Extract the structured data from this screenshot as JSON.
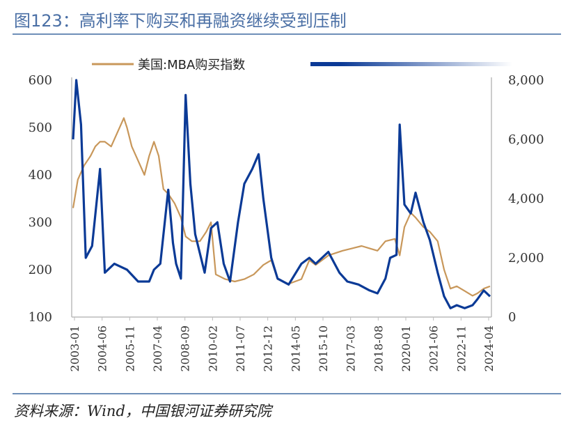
{
  "header": {
    "title": "图123：高利率下购买和再融资继续受到压制"
  },
  "footer": {
    "source": "资料来源：Wind，中国银河证券研究院"
  },
  "colors": {
    "title": "#4a6fa5",
    "rule": "#6e8fb8",
    "series_purchase": "#c8975a",
    "series_refi": "#0b3a96"
  },
  "chart_data": {
    "type": "line",
    "x_tick_labels": [
      "2003-01",
      "2004-06",
      "2005-11",
      "2007-04",
      "2008-09",
      "2010-02",
      "2011-07",
      "2012-12",
      "2014-05",
      "2015-10",
      "2017-03",
      "2018-08",
      "2020-01",
      "2021-06",
      "2022-11",
      "2024-04"
    ],
    "x_range": [
      "2003-01",
      "2024-12"
    ],
    "y_left": {
      "ylim": [
        100,
        600
      ],
      "ticks": [
        "600",
        "500",
        "400",
        "300",
        "200",
        "100"
      ]
    },
    "y_right": {
      "ylim": [
        0,
        8000
      ],
      "ticks": [
        "8,000",
        "6,000",
        "4,000",
        "2,000",
        "0"
      ]
    },
    "legend": {
      "entries": [
        "美国:MBA购买指数",
        ""
      ],
      "position": "top"
    },
    "series": [
      {
        "name": "美国:MBA购买指数",
        "axis": "left",
        "points": [
          [
            "2003-01",
            330
          ],
          [
            "2003-04",
            390
          ],
          [
            "2003-08",
            420
          ],
          [
            "2003-12",
            440
          ],
          [
            "2004-03",
            460
          ],
          [
            "2004-06",
            470
          ],
          [
            "2004-09",
            470
          ],
          [
            "2005-01",
            460
          ],
          [
            "2005-05",
            490
          ],
          [
            "2005-09",
            520
          ],
          [
            "2005-11",
            500
          ],
          [
            "2006-02",
            460
          ],
          [
            "2006-06",
            430
          ],
          [
            "2006-10",
            400
          ],
          [
            "2007-01",
            440
          ],
          [
            "2007-04",
            470
          ],
          [
            "2007-07",
            440
          ],
          [
            "2007-10",
            370
          ],
          [
            "2008-01",
            360
          ],
          [
            "2008-05",
            340
          ],
          [
            "2008-09",
            310
          ],
          [
            "2008-12",
            270
          ],
          [
            "2009-04",
            260
          ],
          [
            "2009-09",
            260
          ],
          [
            "2010-01",
            280
          ],
          [
            "2010-04",
            300
          ],
          [
            "2010-07",
            190
          ],
          [
            "2011-01",
            180
          ],
          [
            "2011-07",
            175
          ],
          [
            "2012-01",
            180
          ],
          [
            "2012-07",
            190
          ],
          [
            "2013-01",
            210
          ],
          [
            "2013-06",
            220
          ],
          [
            "2013-10",
            180
          ],
          [
            "2014-05",
            170
          ],
          [
            "2015-01",
            180
          ],
          [
            "2015-06",
            220
          ],
          [
            "2015-10",
            210
          ],
          [
            "2016-06",
            230
          ],
          [
            "2017-03",
            240
          ],
          [
            "2017-09",
            245
          ],
          [
            "2018-03",
            250
          ],
          [
            "2018-08",
            245
          ],
          [
            "2019-01",
            240
          ],
          [
            "2019-06",
            260
          ],
          [
            "2019-12",
            265
          ],
          [
            "2020-03",
            230
          ],
          [
            "2020-06",
            290
          ],
          [
            "2020-10",
            320
          ],
          [
            "2021-01",
            310
          ],
          [
            "2021-06",
            290
          ],
          [
            "2021-10",
            280
          ],
          [
            "2022-03",
            260
          ],
          [
            "2022-07",
            200
          ],
          [
            "2022-11",
            160
          ],
          [
            "2023-03",
            165
          ],
          [
            "2023-08",
            155
          ],
          [
            "2024-01",
            145
          ],
          [
            "2024-04",
            150
          ],
          [
            "2024-08",
            160
          ],
          [
            "2024-12",
            165
          ]
        ]
      },
      {
        "name": "",
        "axis": "right",
        "points": [
          [
            "2003-01",
            6000
          ],
          [
            "2003-03",
            8000
          ],
          [
            "2003-06",
            6500
          ],
          [
            "2003-09",
            2000
          ],
          [
            "2004-01",
            2400
          ],
          [
            "2004-06",
            5000
          ],
          [
            "2004-09",
            1500
          ],
          [
            "2005-03",
            1800
          ],
          [
            "2005-11",
            1600
          ],
          [
            "2006-06",
            1200
          ],
          [
            "2007-01",
            1200
          ],
          [
            "2007-04",
            1600
          ],
          [
            "2007-08",
            1800
          ],
          [
            "2008-01",
            4300
          ],
          [
            "2008-04",
            2500
          ],
          [
            "2008-06",
            1800
          ],
          [
            "2008-09",
            1300
          ],
          [
            "2008-12",
            7500
          ],
          [
            "2009-03",
            4500
          ],
          [
            "2009-06",
            2800
          ],
          [
            "2009-12",
            1500
          ],
          [
            "2010-04",
            3000
          ],
          [
            "2010-08",
            3200
          ],
          [
            "2010-12",
            1800
          ],
          [
            "2011-04",
            1200
          ],
          [
            "2011-09",
            3200
          ],
          [
            "2012-01",
            4500
          ],
          [
            "2012-06",
            5000
          ],
          [
            "2012-10",
            5500
          ],
          [
            "2013-01",
            4000
          ],
          [
            "2013-06",
            2000
          ],
          [
            "2013-10",
            1300
          ],
          [
            "2014-05",
            1100
          ],
          [
            "2015-01",
            1800
          ],
          [
            "2015-06",
            2000
          ],
          [
            "2015-10",
            1800
          ],
          [
            "2016-06",
            2200
          ],
          [
            "2017-01",
            1500
          ],
          [
            "2017-06",
            1200
          ],
          [
            "2018-01",
            1100
          ],
          [
            "2018-08",
            900
          ],
          [
            "2019-01",
            800
          ],
          [
            "2019-06",
            1300
          ],
          [
            "2019-09",
            2000
          ],
          [
            "2020-01",
            2100
          ],
          [
            "2020-03",
            6500
          ],
          [
            "2020-06",
            3800
          ],
          [
            "2020-10",
            3500
          ],
          [
            "2021-01",
            4200
          ],
          [
            "2021-06",
            3200
          ],
          [
            "2021-10",
            2600
          ],
          [
            "2022-03",
            1500
          ],
          [
            "2022-07",
            700
          ],
          [
            "2022-11",
            300
          ],
          [
            "2023-03",
            400
          ],
          [
            "2023-08",
            300
          ],
          [
            "2024-01",
            400
          ],
          [
            "2024-04",
            600
          ],
          [
            "2024-08",
            900
          ],
          [
            "2024-12",
            700
          ]
        ]
      }
    ]
  }
}
